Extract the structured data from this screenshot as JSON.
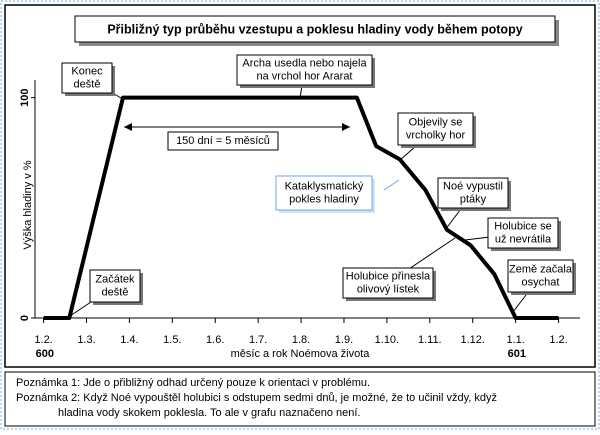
{
  "chart_data": {
    "type": "line",
    "title": "Přibližný typ průběhu vzestupu a poklesu hladiny vody během potopy",
    "x_label": "měsíc a rok Noémova života",
    "y_label": "Výška hladiny v %",
    "x": [
      0,
      0.6,
      1.85,
      7.3,
      7.75,
      8.3,
      8.9,
      9.4,
      9.95,
      10.5,
      11,
      12
    ],
    "series": [
      {
        "color": "#000000",
        "values": [
          0,
          0,
          100,
          100,
          78,
          72,
          58,
          40,
          33,
          20,
          0,
          0
        ]
      }
    ],
    "xlim": [
      -0.2,
      12.5
    ],
    "ylim": [
      0,
      108
    ],
    "xticks": [
      {
        "value": 0,
        "label": "1.2."
      },
      {
        "value": 1,
        "label": "1.3."
      },
      {
        "value": 2,
        "label": "1.4."
      },
      {
        "value": 3,
        "label": "1.5."
      },
      {
        "value": 4,
        "label": "1.6."
      },
      {
        "value": 5,
        "label": "1.7."
      },
      {
        "value": 6,
        "label": "1.8."
      },
      {
        "value": 7,
        "label": "1.9."
      },
      {
        "value": 8,
        "label": "1.10."
      },
      {
        "value": 9,
        "label": "1.11."
      },
      {
        "value": 10,
        "label": "1.12."
      },
      {
        "value": 11,
        "label": "1.1."
      },
      {
        "value": 12,
        "label": "1.2."
      }
    ],
    "year_labels": [
      {
        "value": 0,
        "label": "600"
      },
      {
        "value": 11,
        "label": "601"
      }
    ],
    "yticks": [
      0,
      100
    ],
    "annotations": [
      {
        "lines": [
          "Konec",
          "deště"
        ]
      },
      {
        "lines": [
          "Začátek",
          "deště"
        ]
      },
      {
        "lines": [
          "Archa usedla nebo najela",
          "na vrchol hor Ararat"
        ]
      },
      {
        "lines": [
          "Objevily se",
          "vrcholky hor"
        ]
      },
      {
        "lines": [
          "Noé vypustil",
          "ptáky"
        ]
      },
      {
        "lines": [
          "Holubice se",
          "už nevrátila"
        ]
      },
      {
        "lines": [
          "Holubice přinesla",
          "olivový lístek"
        ]
      },
      {
        "lines": [
          "Země začala",
          "osychat"
        ]
      },
      {
        "lines": [
          "Kataklysmatický",
          "pokles hladiny"
        ]
      },
      {
        "lines": [
          "150 dní = 5 měsíců"
        ]
      }
    ]
  },
  "notes": [
    "Poznámka 1: Jde o přibližný odhad určený pouze k orientaci v problému.",
    "Poznámka 2: Když Noé vypouštěl holubici s odstupem sedmi dnů, je možné, že to učinil vždy, když",
    "hladina vody skokem poklesla. To ale v grafu naznačeno není."
  ]
}
